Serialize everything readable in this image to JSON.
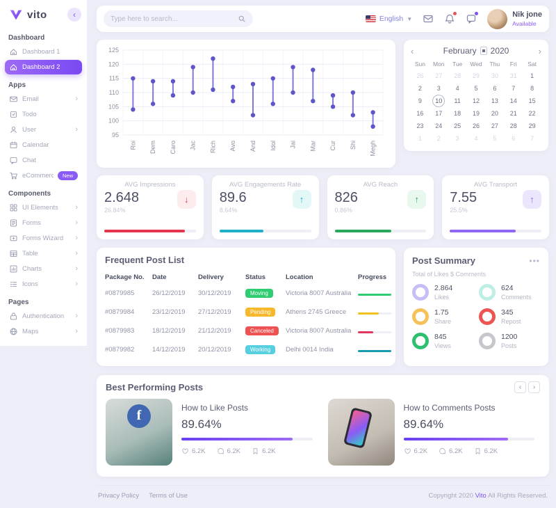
{
  "app": {
    "brand": "vito"
  },
  "sidebar": {
    "sections": [
      {
        "title": "Dashboard",
        "items": [
          {
            "label": "Dashboard 1",
            "icon": "home",
            "active": false
          },
          {
            "label": "Dashboard 2",
            "icon": "home",
            "active": true
          }
        ]
      },
      {
        "title": "Apps",
        "items": [
          {
            "label": "Email",
            "icon": "email",
            "chevron": true
          },
          {
            "label": "Todo",
            "icon": "todo"
          },
          {
            "label": "User",
            "icon": "user",
            "chevron": true
          },
          {
            "label": "Calendar",
            "icon": "calendar"
          },
          {
            "label": "Chat",
            "icon": "chat"
          },
          {
            "label": "eCommerce",
            "icon": "cart",
            "badge": "New"
          }
        ]
      },
      {
        "title": "Components",
        "items": [
          {
            "label": "UI Elements",
            "icon": "ui",
            "chevron": true
          },
          {
            "label": "Forms",
            "icon": "forms",
            "chevron": true
          },
          {
            "label": "Forms Wizard",
            "icon": "wizard",
            "chevron": true
          },
          {
            "label": "Table",
            "icon": "table",
            "chevron": true
          },
          {
            "label": "Charts",
            "icon": "charts",
            "chevron": true
          },
          {
            "label": "Icons",
            "icon": "icons",
            "chevron": true
          }
        ]
      },
      {
        "title": "Pages",
        "items": [
          {
            "label": "Authentication",
            "icon": "auth",
            "chevron": true
          },
          {
            "label": "Maps",
            "icon": "globe",
            "chevron": true
          }
        ]
      }
    ]
  },
  "header": {
    "search_placeholder": "Type here to search...",
    "language": "English",
    "user": {
      "name": "Nik jone",
      "status": "Available"
    }
  },
  "chart_data": {
    "type": "range-bar",
    "title": "",
    "categories": [
      "Roi",
      "Dem",
      "Caro",
      "Jac",
      "Rich",
      "Avo",
      "And",
      "Idol",
      "Jai",
      "Mar",
      "Cur",
      "Shi",
      "Megh"
    ],
    "series": [
      {
        "name": "Range",
        "low": [
          104,
          106,
          109,
          110,
          111,
          107,
          102,
          106,
          110,
          107,
          105,
          102,
          98
        ],
        "high": [
          115,
          114,
          114,
          119,
          122,
          112,
          113,
          115,
          119,
          118,
          109,
          110,
          103
        ]
      }
    ],
    "ylim": [
      95,
      125
    ],
    "yticks": [
      95,
      100,
      105,
      110,
      115,
      120,
      125
    ],
    "grid": true,
    "line_color": "#8079dd",
    "dot_color": "#5e55c8"
  },
  "calendar": {
    "month": "February",
    "year": "2020",
    "prev_label": "‹",
    "next_label": "›",
    "day_names": [
      "Sun",
      "Mon",
      "Tue",
      "Wed",
      "Thu",
      "Fri",
      "Sat"
    ],
    "leading_days": [
      26,
      27,
      28,
      29,
      30,
      31
    ],
    "days_in_month": 29,
    "selected_day": 10,
    "trailing_days": [
      1,
      2,
      3,
      4,
      5,
      6,
      7
    ]
  },
  "stats": [
    {
      "title": "AVG Impressions",
      "value": "2.648",
      "change": "26.84%",
      "direction": "down",
      "color": "#e2364f",
      "chip_bg": "#fdeceE",
      "bar_pct": 88
    },
    {
      "title": "AVG Engagements Rate",
      "value": "89.6",
      "change": "8.64%",
      "direction": "up",
      "color": "#1fb0c5",
      "chip_bg": "#e3f8f6",
      "bar_pct": 48
    },
    {
      "title": "AVG Reach",
      "value": "826",
      "change": "0.86%",
      "direction": "up",
      "color": "#2aa85c",
      "chip_bg": "#e8f8ee",
      "bar_pct": 62
    },
    {
      "title": "AVG Transport",
      "value": "7.55",
      "change": "25.5%",
      "direction": "up",
      "color": "#8d67f1",
      "chip_bg": "#ece6fc",
      "bar_pct": 72
    }
  ],
  "post_list": {
    "title": "Frequent Post List",
    "columns": [
      "Package No.",
      "Date",
      "Delivery",
      "Status",
      "Location",
      "Progress"
    ],
    "rows": [
      {
        "package": "#0879985",
        "date": "26/12/2019",
        "delivery": "30/12/2019",
        "status": "Moving",
        "status_color": "#2fcc71",
        "location": "Victoria 8007 Australia",
        "progress_pct": 100,
        "progress_color": "#2fcc71"
      },
      {
        "package": "#0879984",
        "date": "23/12/2019",
        "delivery": "27/12/2019",
        "status": "Pending",
        "status_color": "#f7b92b",
        "location": "Athens 2745 Greece",
        "progress_pct": 62,
        "progress_color": "#f2c21c"
      },
      {
        "package": "#0879983",
        "date": "18/12/2019",
        "delivery": "21/12/2019",
        "status": "Canceled",
        "status_color": "#ee5253",
        "location": "Victoria 8007 Australia",
        "progress_pct": 45,
        "progress_color": "#e2365e"
      },
      {
        "package": "#0879982",
        "date": "14/12/2019",
        "delivery": "20/12/2019",
        "status": "Working",
        "status_color": "#56cfe1",
        "location": "Delhi 0014 India",
        "progress_pct": 100,
        "progress_color": "#189bb0"
      }
    ]
  },
  "post_summary": {
    "title": "Post Summary",
    "subtitle": "Total of Likes $ Comments",
    "items": [
      {
        "value": "2.864",
        "label": "Likes",
        "color": "#c5bff5"
      },
      {
        "value": "624",
        "label": "Comments",
        "color": "#bfeee4"
      },
      {
        "value": "1.75",
        "label": "Share",
        "color": "#f5c158"
      },
      {
        "value": "345",
        "label": "Repost",
        "color": "#ec5652"
      },
      {
        "value": "845",
        "label": "Views",
        "color": "#2fbf71"
      },
      {
        "value": "1200",
        "label": "Posts",
        "color": "#c6c6cc"
      }
    ]
  },
  "best_posts": {
    "title": "Best Performing Posts",
    "prev_label": "‹",
    "next_label": "›",
    "posts": [
      {
        "title": "How to Like Posts",
        "percent": "89.64%",
        "bar_pct": 85,
        "image": "facebook-post",
        "stats": [
          {
            "icon": "heart",
            "value": "6.2K"
          },
          {
            "icon": "comment",
            "value": "6.2K"
          },
          {
            "icon": "bookmark",
            "value": "6.2K"
          }
        ]
      },
      {
        "title": "How to Comments Posts",
        "percent": "89.64%",
        "bar_pct": 80,
        "image": "phone-post",
        "stats": [
          {
            "icon": "heart",
            "value": "6.2K"
          },
          {
            "icon": "comment",
            "value": "6.2K"
          },
          {
            "icon": "bookmark",
            "value": "6.2K"
          }
        ]
      }
    ]
  },
  "footer": {
    "links": [
      "Privacy Policy",
      "Terms of Use"
    ],
    "copyright": {
      "prefix": "Copyright 2020",
      "brand": "Vito",
      "suffix": "All Rights Reserved."
    }
  }
}
